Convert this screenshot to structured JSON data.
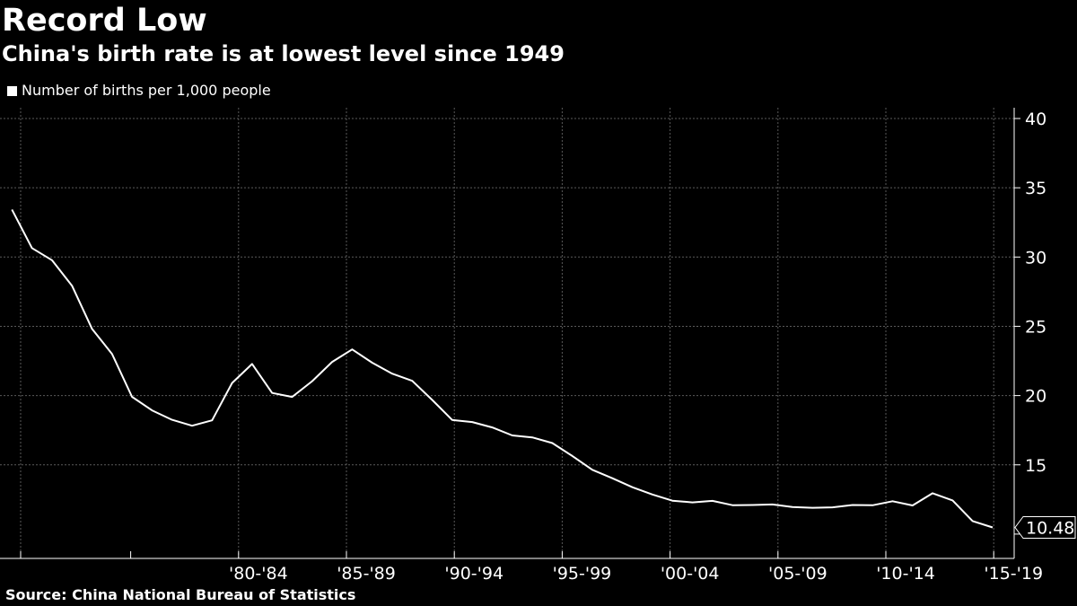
{
  "header": {
    "title": "Record Low",
    "subtitle": "China's birth rate is at lowest level since 1949"
  },
  "legend": {
    "label": "Number of births per 1,000 people"
  },
  "footer": {
    "source": "Source: China National Bureau of Statistics"
  },
  "chart_data": {
    "type": "line",
    "title": "Record Low",
    "subtitle": "China's birth rate is at lowest level since 1949",
    "ylim": [
      8,
      41
    ],
    "ytick_values": [
      15,
      20,
      25,
      30,
      35,
      40
    ],
    "xlim": [
      1970,
      2019.9
    ],
    "grid": true,
    "legend_position": "top-left",
    "colors": {
      "background": "#000000",
      "line": "#ffffff",
      "grid": "#5a5a5a"
    },
    "x_tick_labels": [
      {
        "label": "'80-'84",
        "center": 1982.5
      },
      {
        "label": "'85-'89",
        "center": 1987.5
      },
      {
        "label": "'90-'94",
        "center": 1992.5
      },
      {
        "label": "'95-'99",
        "center": 1997.5
      },
      {
        "label": "'00-'04",
        "center": 2002.5
      },
      {
        "label": "'05-'09",
        "center": 2007.5
      },
      {
        "label": "'10-'14",
        "center": 2012.5
      },
      {
        "label": "'15-'19",
        "center": 2017.5
      }
    ],
    "last_value_label": "10.48",
    "series": [
      {
        "name": "Number of births per 1,000 people",
        "x": [
          1970,
          1971,
          1972,
          1973,
          1974,
          1975,
          1976,
          1977,
          1978,
          1979,
          1980,
          1981,
          1982,
          1983,
          1984,
          1985,
          1986,
          1987,
          1988,
          1989,
          1990,
          1991,
          1992,
          1993,
          1994,
          1995,
          1996,
          1997,
          1998,
          1999,
          2000,
          2001,
          2002,
          2003,
          2004,
          2005,
          2006,
          2007,
          2008,
          2009,
          2010,
          2011,
          2012,
          2013,
          2014,
          2015,
          2016,
          2017,
          2018,
          2019
        ],
        "values": [
          33.43,
          30.65,
          29.77,
          27.93,
          24.82,
          23.01,
          19.91,
          18.93,
          18.25,
          17.82,
          18.21,
          20.91,
          22.28,
          20.19,
          19.9,
          21.04,
          22.43,
          23.33,
          22.37,
          21.58,
          21.06,
          19.68,
          18.24,
          18.09,
          17.7,
          17.12,
          16.98,
          16.57,
          15.64,
          14.64,
          14.03,
          13.38,
          12.86,
          12.41,
          12.29,
          12.4,
          12.09,
          12.1,
          12.14,
          11.95,
          11.9,
          11.93,
          12.1,
          12.08,
          12.37,
          12.07,
          12.95,
          12.43,
          10.94,
          10.48
        ]
      }
    ]
  }
}
